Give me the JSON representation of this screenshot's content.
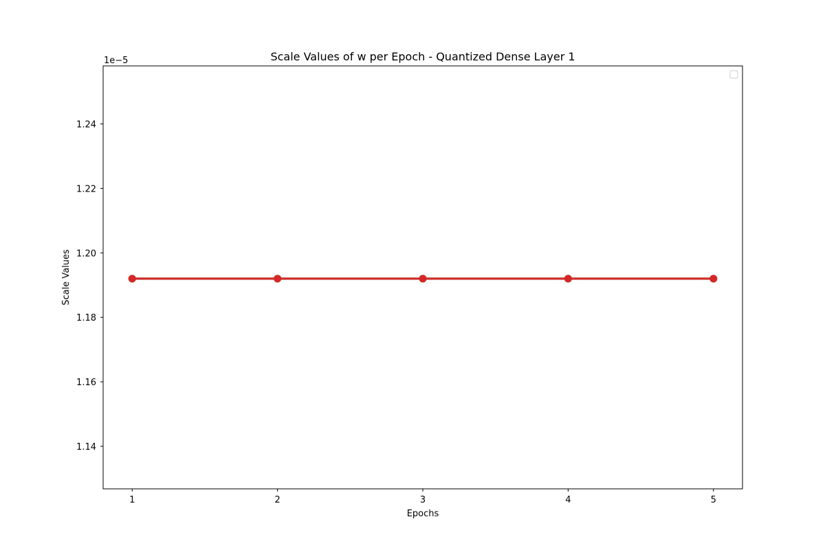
{
  "chart_data": {
    "type": "line",
    "title": "Scale Values of w per Epoch - Quantized Dense Layer 1",
    "xlabel": "Epochs",
    "ylabel": "Scale Values",
    "offset_label": "1e−5",
    "x": [
      1,
      2,
      3,
      4,
      5
    ],
    "x_tick_labels": [
      "1",
      "2",
      "3",
      "4",
      "5"
    ],
    "xlim": [
      0.8,
      5.2
    ],
    "y_scale_factor": 1e-05,
    "y_ticks": [
      1.14,
      1.16,
      1.18,
      1.2,
      1.22,
      1.24
    ],
    "y_tick_labels": [
      "1.14",
      "1.16",
      "1.18",
      "1.20",
      "1.22",
      "1.24"
    ],
    "ylim": [
      1.1268,
      1.258
    ],
    "grid": false,
    "legend": {
      "placement": "top-right",
      "entries": []
    },
    "series": [
      {
        "values": [
          1.192,
          1.192,
          1.192,
          1.192,
          1.192
        ],
        "color": "#1f77b4",
        "marker": "circle"
      },
      {
        "values": [
          1.192,
          1.192,
          1.192,
          1.192,
          1.192
        ],
        "color": "#ff7f0e",
        "marker": "circle"
      },
      {
        "values": [
          1.192,
          1.192,
          1.192,
          1.192,
          1.192
        ],
        "color": "#2ca02c",
        "marker": "circle"
      },
      {
        "values": [
          1.192,
          1.192,
          1.192,
          1.192,
          1.192
        ],
        "color": "#d62728",
        "marker": "circle"
      }
    ]
  }
}
